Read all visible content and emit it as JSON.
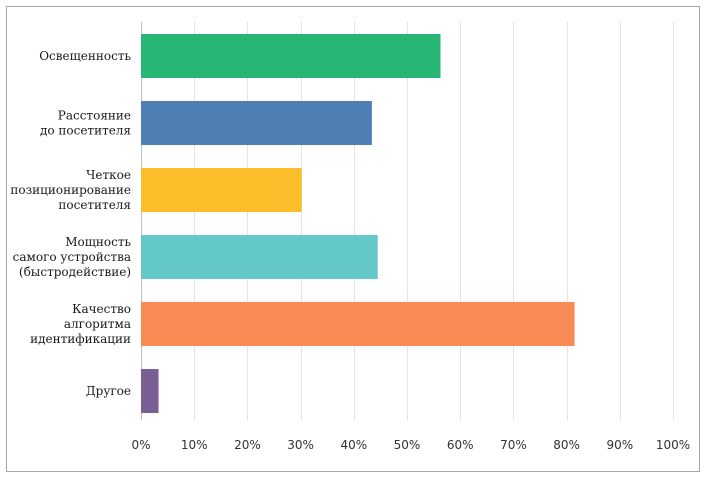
{
  "chart_data": {
    "type": "bar",
    "orientation": "horizontal",
    "categories": [
      "Освещенность",
      "Расстояние\nдо посетителя",
      "Четкое\nпозиционирование\nпосетителя",
      "Мощность\nсамого устройства\n(быстродействие)",
      "Качество\nалгоритма\nидентификации",
      "Другое"
    ],
    "values": [
      56.3,
      43.4,
      30.2,
      44.5,
      81.5,
      3.3
    ],
    "colors": [
      "#27b673",
      "#507fb6",
      "#fbbd2a",
      "#64c8c8",
      "#f78a55",
      "#7a5f94"
    ],
    "xlim": [
      0,
      100
    ],
    "xticks": [
      0,
      10,
      20,
      30,
      40,
      50,
      60,
      70,
      80,
      90,
      100
    ],
    "xtick_labels": [
      "0%",
      "10%",
      "20%",
      "30%",
      "40%",
      "50%",
      "60%",
      "70%",
      "80%",
      "90%",
      "100%"
    ],
    "grid": true,
    "title": "",
    "xlabel": "",
    "ylabel": ""
  }
}
